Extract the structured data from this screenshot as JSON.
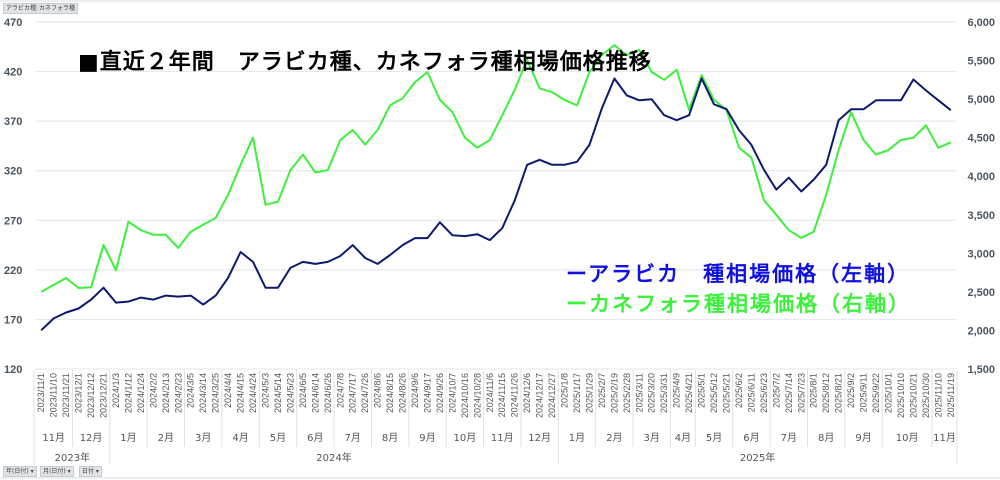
{
  "pivot_buttons_top": [
    "アラビカ種",
    "カネフォラ種"
  ],
  "pivot_buttons_bottom": [
    "年(日付) ▾",
    "月(日付) ▾",
    "日付 ▾"
  ],
  "chart_data": {
    "type": "line",
    "title": "■直近２年間　アラビカ種、カネフォラ種相場価格推移",
    "left_axis": {
      "ylim": [
        120,
        470
      ],
      "ticks": [
        "120",
        "170",
        "220",
        "270",
        "320",
        "370",
        "420",
        "470"
      ]
    },
    "right_axis": {
      "ylim": [
        1500,
        6000
      ],
      "ticks": [
        "1,500",
        "2,000",
        "2,500",
        "3,000",
        "3,500",
        "4,000",
        "4,500",
        "5,000",
        "5,500",
        "6,000"
      ]
    },
    "grid": true,
    "x": [
      "2023/11/1",
      "2023/11/10",
      "2023/11/21",
      "2023/12/1",
      "2023/12/12",
      "2023/12/21",
      "2024/1/3",
      "2024/1/12",
      "2024/1/24",
      "2024/2/2",
      "2024/2/13",
      "2024/2/23",
      "2024/3/5",
      "2024/3/14",
      "2024/3/25",
      "2024/4/4",
      "2024/4/15",
      "2024/4/24",
      "2024/5/3",
      "2024/5/14",
      "2024/5/23",
      "2024/6/5",
      "2024/6/14",
      "2024/6/26",
      "2024/7/8",
      "2024/7/17",
      "2024/7/26",
      "2024/8/6",
      "2024/8/15",
      "2024/8/26",
      "2024/9/6",
      "2024/9/17",
      "2024/9/26",
      "2024/10/7",
      "2024/10/16",
      "2024/10/28",
      "2024/11/6",
      "2024/11/15",
      "2024/11/26",
      "2024/12/6",
      "2024/12/17",
      "2024/12/27",
      "2025/1/8",
      "2025/1/17",
      "2025/1/29",
      "2025/2/7",
      "2025/2/19",
      "2025/2/28",
      "2025/3/11",
      "2025/3/20",
      "2025/3/31",
      "2025/4/9",
      "2025/4/21",
      "2025/5/1",
      "2025/5/12",
      "2025/5/21",
      "2025/6/2",
      "2025/6/11",
      "2025/6/23",
      "2025/7/2",
      "2025/7/14",
      "2025/7/23",
      "2025/8/1",
      "2025/8/12",
      "2025/8/21",
      "2025/9/2",
      "2025/9/11",
      "2025/9/22",
      "2025/10/1",
      "2025/10/10",
      "2025/10/21",
      "2025/10/30",
      "2025/11/10",
      "2025/11/19"
    ],
    "months": [
      {
        "label": "11月",
        "count": 3
      },
      {
        "label": "12月",
        "count": 3
      },
      {
        "label": "1月",
        "count": 3
      },
      {
        "label": "2月",
        "count": 3
      },
      {
        "label": "3月",
        "count": 3
      },
      {
        "label": "4月",
        "count": 3
      },
      {
        "label": "5月",
        "count": 3
      },
      {
        "label": "6月",
        "count": 3
      },
      {
        "label": "7月",
        "count": 3
      },
      {
        "label": "8月",
        "count": 3
      },
      {
        "label": "9月",
        "count": 3
      },
      {
        "label": "10月",
        "count": 3
      },
      {
        "label": "11月",
        "count": 3
      },
      {
        "label": "12月",
        "count": 3
      },
      {
        "label": "1月",
        "count": 3
      },
      {
        "label": "2月",
        "count": 3
      },
      {
        "label": "3月",
        "count": 3
      },
      {
        "label": "4月",
        "count": 2
      },
      {
        "label": "5月",
        "count": 3
      },
      {
        "label": "6月",
        "count": 3
      },
      {
        "label": "7月",
        "count": 3
      },
      {
        "label": "8月",
        "count": 3
      },
      {
        "label": "9月",
        "count": 3
      },
      {
        "label": "10月",
        "count": 4
      },
      {
        "label": "11月",
        "count": 2
      }
    ],
    "years": [
      {
        "label": "2023年",
        "count": 6
      },
      {
        "label": "2024年",
        "count": 36
      },
      {
        "label": "2025年",
        "count": 32
      }
    ],
    "series": [
      {
        "name": "ーアラビカ　種相場価格（左軸）",
        "axis": "left",
        "color": "#0d1a6e",
        "legend_color": "#1010e0",
        "values": [
          159,
          171,
          177,
          181,
          190,
          202,
          187,
          188,
          192,
          190,
          194,
          193,
          194,
          185,
          194,
          212,
          238,
          228,
          202,
          202,
          222,
          228,
          226,
          228,
          234,
          245,
          232,
          226,
          235,
          245,
          252,
          252,
          268,
          255,
          254,
          256,
          250,
          262,
          290,
          326,
          331,
          326,
          326,
          329,
          346,
          383,
          413,
          396,
          391,
          392,
          376,
          371,
          376,
          413,
          387,
          382,
          361,
          346,
          321,
          301,
          313,
          299,
          311,
          326,
          371,
          382,
          382,
          391,
          391,
          391,
          412,
          401,
          391,
          381
        ]
      },
      {
        "name": "ーカネフォラ種相場価格（右軸）",
        "axis": "right",
        "color": "#3cf03c",
        "legend_color": "#3cf03c",
        "values": [
          2500,
          2590,
          2680,
          2550,
          2560,
          3110,
          2780,
          3410,
          3300,
          3240,
          3240,
          3070,
          3280,
          3370,
          3460,
          3760,
          4150,
          4500,
          3630,
          3670,
          4080,
          4280,
          4050,
          4080,
          4470,
          4600,
          4410,
          4600,
          4920,
          5010,
          5220,
          5350,
          4990,
          4830,
          4500,
          4370,
          4470,
          4790,
          5120,
          5510,
          5140,
          5090,
          4990,
          4920,
          5350,
          5570,
          5700,
          5570,
          5640,
          5350,
          5250,
          5380,
          4860,
          5310,
          4990,
          4860,
          4370,
          4240,
          3690,
          3500,
          3300,
          3200,
          3280,
          3760,
          4340,
          4830,
          4470,
          4280,
          4340,
          4470,
          4500,
          4660,
          4370,
          4440
        ]
      }
    ]
  }
}
